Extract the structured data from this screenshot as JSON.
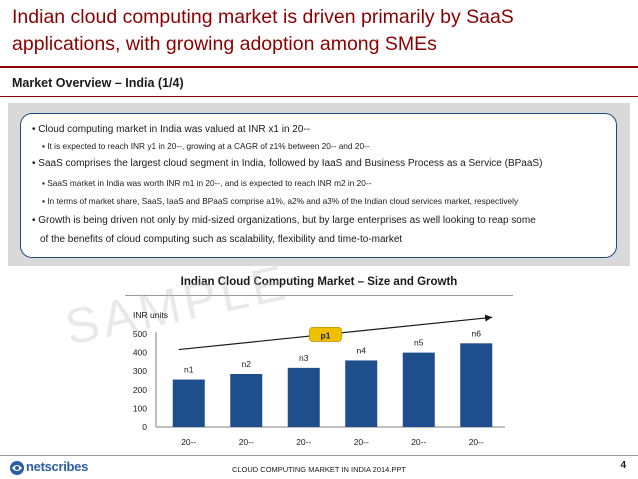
{
  "header": {
    "title": "Indian cloud computing market is driven primarily by SaaS applications, with growing adoption among SMEs",
    "section": "Market Overview – India (1/4)"
  },
  "overview": {
    "b1": "• Cloud computing market in India was valued at INR x1 in 20--",
    "b1s1": "▪ It is expected to reach INR y1 in 20--, growing at a CAGR of z1% between 20-- and 20--",
    "b2": "• SaaS comprises the largest cloud segment in India, followed by IaaS and Business Process as a Service (BPaaS)",
    "b2s1": "▪ SaaS market in India was worth INR m1 in 20--, and is expected to reach INR m2 in 20--",
    "b2s2": "▪ In terms of market share, SaaS, IaaS and BPaaS comprise a1%, a2% and a3% of the Indian cloud services market, respectively",
    "b3l1": "• Growth is being driven not only by mid-sized organizations, but by large enterprises as well looking to reap some",
    "b3l2": "of the benefits of cloud computing such as scalability, flexibility and time-to-market"
  },
  "chart_data": {
    "type": "bar",
    "title": "Indian Cloud Computing Market – Size and Growth",
    "ylabel": "INR units",
    "ylim": [
      0,
      500
    ],
    "yticks": [
      "0",
      "100",
      "200",
      "300",
      "400",
      "500"
    ],
    "categories": [
      "20--",
      "20--",
      "20--",
      "20--",
      "20--",
      "20--"
    ],
    "values": [
      255,
      285,
      318,
      358,
      400,
      450
    ],
    "data_labels": [
      "n1",
      "n2",
      "n3",
      "n4",
      "n5",
      "n6"
    ],
    "growth_label": "p1",
    "bar_color": "#1f4e8c",
    "badge_color": "#f0c000"
  },
  "watermark": "SAMPLE",
  "footer": {
    "brand": "netscribes",
    "doc": "CLOUD COMPUTING MARKET IN INDIA 2014.PPT",
    "page": "4"
  }
}
